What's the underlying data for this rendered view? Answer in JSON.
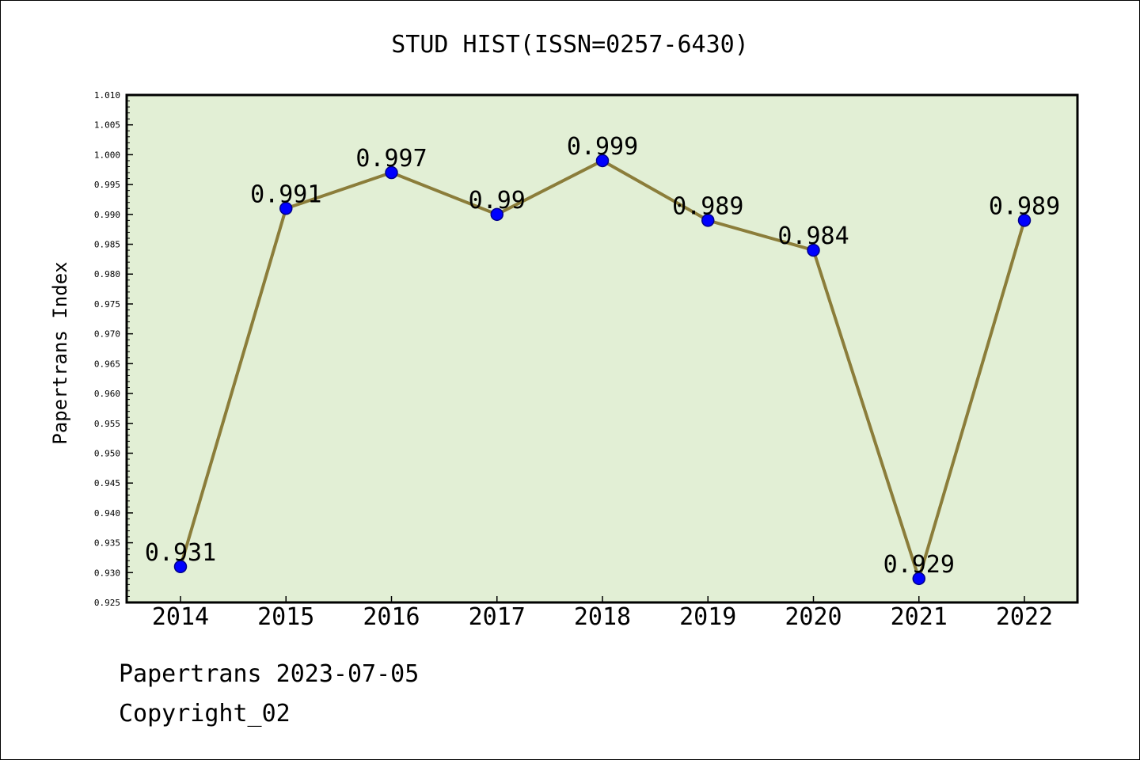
{
  "chart_data": {
    "type": "line",
    "title": "STUD HIST(ISSN=0257-6430)",
    "xlabel": "",
    "ylabel": "Papertrans Index",
    "categories": [
      "2014",
      "2015",
      "2016",
      "2017",
      "2018",
      "2019",
      "2020",
      "2021",
      "2022"
    ],
    "values": [
      0.931,
      0.991,
      0.997,
      0.99,
      0.999,
      0.989,
      0.984,
      0.929,
      0.989
    ],
    "data_labels": [
      "0.931",
      "0.991",
      "0.997",
      "0.99",
      "0.999",
      "0.989",
      "0.984",
      "0.929",
      "0.989"
    ],
    "ylim": [
      0.925,
      1.01
    ],
    "yticks": [
      "0.925",
      "0.930",
      "0.935",
      "0.940",
      "0.945",
      "0.950",
      "0.955",
      "0.960",
      "0.965",
      "0.970",
      "0.975",
      "0.980",
      "0.985",
      "0.990",
      "0.995",
      "1.000",
      "1.005",
      "1.010"
    ],
    "grid": false,
    "legend": "none",
    "colors": {
      "plot_background": "#e2efd5",
      "line": "#8b7d3a",
      "marker_fill": "#0000ff",
      "marker_edge": "#00008b"
    }
  },
  "footer": {
    "line1": "Papertrans 2023-07-05",
    "line2": "Copyright_02"
  }
}
